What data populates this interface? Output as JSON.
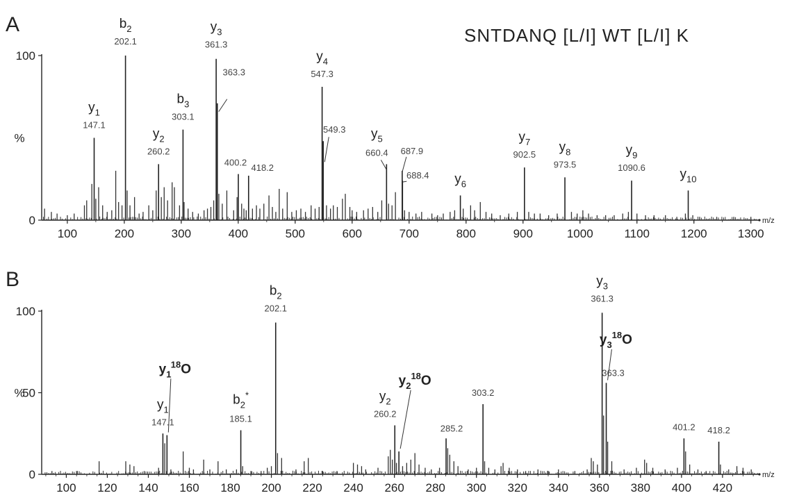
{
  "sequence": "SNTDANQ [L/I] WT [L/I] K",
  "chart_data": [
    {
      "type": "bar",
      "panel": "A",
      "xlabel": "m/z",
      "ylabel": "%",
      "xlim": [
        55,
        1315
      ],
      "ylim": [
        0,
        100
      ],
      "xticks": [
        100,
        200,
        300,
        400,
        500,
        600,
        700,
        800,
        900,
        1000,
        1100,
        1200,
        1300
      ],
      "yticks": [
        0,
        100
      ],
      "labeled_peaks": [
        {
          "x": 147.1,
          "y": 50,
          "mz_label": "147.1",
          "ion": "y",
          "sub": "1",
          "sup": ""
        },
        {
          "x": 202.1,
          "y": 100,
          "mz_label": "202.1",
          "ion": "b",
          "sub": "2",
          "sup": ""
        },
        {
          "x": 260.2,
          "y": 34,
          "mz_label": "260.2",
          "ion": "y",
          "sub": "2",
          "sup": ""
        },
        {
          "x": 303.1,
          "y": 55,
          "mz_label": "303.1",
          "ion": "b",
          "sub": "3",
          "sup": ""
        },
        {
          "x": 361.3,
          "y": 98,
          "mz_label": "361.3",
          "ion": "y",
          "sub": "3",
          "sup": ""
        },
        {
          "x": 363.3,
          "y": 71,
          "mz_label": "363.3",
          "ion": "",
          "sub": "",
          "sup": ""
        },
        {
          "x": 400.2,
          "y": 28,
          "mz_label": "400.2",
          "ion": "",
          "sub": "",
          "sup": ""
        },
        {
          "x": 418.2,
          "y": 27,
          "mz_label": "418.2",
          "ion": "",
          "sub": "",
          "sup": ""
        },
        {
          "x": 547.3,
          "y": 81,
          "mz_label": "547.3",
          "ion": "y",
          "sub": "4",
          "sup": ""
        },
        {
          "x": 549.3,
          "y": 48,
          "mz_label": "549.3",
          "ion": "",
          "sub": "",
          "sup": ""
        },
        {
          "x": 660.4,
          "y": 34,
          "mz_label": "660.4",
          "ion": "y",
          "sub": "5",
          "sup": ""
        },
        {
          "x": 687.9,
          "y": 30,
          "mz_label": "687.9",
          "ion": "",
          "sub": "",
          "sup": ""
        },
        {
          "x": 688.4,
          "y": 24,
          "mz_label": "688.4",
          "ion": "",
          "sub": "",
          "sup": ""
        },
        {
          "x": 790.0,
          "y": 15,
          "mz_label": "",
          "ion": "y",
          "sub": "6",
          "sup": ""
        },
        {
          "x": 902.5,
          "y": 32,
          "mz_label": "902.5",
          "ion": "y",
          "sub": "7",
          "sup": ""
        },
        {
          "x": 973.5,
          "y": 26,
          "mz_label": "973.5",
          "ion": "y",
          "sub": "8",
          "sup": ""
        },
        {
          "x": 1090.6,
          "y": 24,
          "mz_label": "1090.6",
          "ion": "y",
          "sub": "9",
          "sup": ""
        },
        {
          "x": 1190.0,
          "y": 18,
          "mz_label": "",
          "ion": "y",
          "sub": "10",
          "sup": ""
        }
      ],
      "minor_peaks": [
        [
          60,
          7
        ],
        [
          72,
          5
        ],
        [
          82,
          4
        ],
        [
          100,
          3
        ],
        [
          112,
          4
        ],
        [
          130,
          9
        ],
        [
          134,
          12
        ],
        [
          143,
          22
        ],
        [
          150,
          13
        ],
        [
          155,
          20
        ],
        [
          162,
          9
        ],
        [
          170,
          5
        ],
        [
          178,
          6
        ],
        [
          185,
          30
        ],
        [
          190,
          11
        ],
        [
          196,
          9
        ],
        [
          205,
          18
        ],
        [
          210,
          9
        ],
        [
          218,
          14
        ],
        [
          226,
          4
        ],
        [
          233,
          5
        ],
        [
          243,
          9
        ],
        [
          250,
          6
        ],
        [
          256,
          18
        ],
        [
          265,
          14
        ],
        [
          270,
          20
        ],
        [
          276,
          12
        ],
        [
          284,
          23
        ],
        [
          288,
          20
        ],
        [
          297,
          9
        ],
        [
          305,
          11
        ],
        [
          312,
          7
        ],
        [
          320,
          5
        ],
        [
          330,
          4
        ],
        [
          340,
          6
        ],
        [
          346,
          7
        ],
        [
          352,
          8
        ],
        [
          357,
          12
        ],
        [
          366,
          16
        ],
        [
          372,
          10
        ],
        [
          380,
          18
        ],
        [
          392,
          6
        ],
        [
          398,
          14
        ],
        [
          406,
          10
        ],
        [
          410,
          7
        ],
        [
          414,
          6
        ],
        [
          425,
          7
        ],
        [
          432,
          9
        ],
        [
          438,
          7
        ],
        [
          445,
          10
        ],
        [
          454,
          15
        ],
        [
          460,
          8
        ],
        [
          466,
          5
        ],
        [
          472,
          19
        ],
        [
          478,
          7
        ],
        [
          486,
          17
        ],
        [
          494,
          5
        ],
        [
          502,
          6
        ],
        [
          510,
          7
        ],
        [
          518,
          5
        ],
        [
          528,
          9
        ],
        [
          535,
          7
        ],
        [
          542,
          8
        ],
        [
          555,
          9
        ],
        [
          562,
          7
        ],
        [
          567,
          9
        ],
        [
          574,
          8
        ],
        [
          583,
          13
        ],
        [
          588,
          16
        ],
        [
          596,
          8
        ],
        [
          600,
          6
        ],
        [
          608,
          5
        ],
        [
          620,
          6
        ],
        [
          628,
          7
        ],
        [
          636,
          8
        ],
        [
          645,
          5
        ],
        [
          652,
          12
        ],
        [
          664,
          10
        ],
        [
          670,
          9
        ],
        [
          676,
          17
        ],
        [
          692,
          6
        ],
        [
          700,
          5
        ],
        [
          712,
          4
        ],
        [
          722,
          5
        ],
        [
          740,
          4
        ],
        [
          750,
          3
        ],
        [
          760,
          4
        ],
        [
          772,
          5
        ],
        [
          780,
          6
        ],
        [
          795,
          7
        ],
        [
          808,
          9
        ],
        [
          815,
          6
        ],
        [
          825,
          11
        ],
        [
          835,
          5
        ],
        [
          845,
          4
        ],
        [
          860,
          3
        ],
        [
          875,
          4
        ],
        [
          890,
          5
        ],
        [
          910,
          5
        ],
        [
          920,
          4
        ],
        [
          930,
          4
        ],
        [
          945,
          3
        ],
        [
          960,
          4
        ],
        [
          985,
          5
        ],
        [
          995,
          4
        ],
        [
          1005,
          6
        ],
        [
          1015,
          4
        ],
        [
          1030,
          3
        ],
        [
          1045,
          3
        ],
        [
          1060,
          3
        ],
        [
          1075,
          4
        ],
        [
          1085,
          5
        ],
        [
          1100,
          4
        ],
        [
          1115,
          3
        ],
        [
          1130,
          3
        ],
        [
          1150,
          3
        ],
        [
          1170,
          2
        ],
        [
          1185,
          4
        ],
        [
          1198,
          3
        ],
        [
          1210,
          2
        ],
        [
          1240,
          2
        ],
        [
          1270,
          2
        ],
        [
          1300,
          2
        ]
      ]
    },
    {
      "type": "bar",
      "panel": "B",
      "xlabel": "m/z",
      "ylabel": "%",
      "xlim": [
        88,
        438
      ],
      "ylim": [
        0,
        100
      ],
      "xticks": [
        100,
        120,
        140,
        160,
        180,
        200,
        220,
        240,
        260,
        280,
        300,
        320,
        340,
        360,
        380,
        400,
        420
      ],
      "yticks": [
        0,
        50,
        100
      ],
      "labeled_peaks": [
        {
          "x": 147.1,
          "y": 25,
          "mz_label": "147.1",
          "ion": "y",
          "sub": "1",
          "sup": ""
        },
        {
          "x": 149.1,
          "y": 24,
          "mz_label": "",
          "ion": "",
          "sub": "",
          "sup": "",
          "pointer": "y1-18o"
        },
        {
          "x": 185.1,
          "y": 27,
          "mz_label": "185.1",
          "ion": "b",
          "sub": "2",
          "sup": "*"
        },
        {
          "x": 202.1,
          "y": 93,
          "mz_label": "202.1",
          "ion": "b",
          "sub": "2",
          "sup": ""
        },
        {
          "x": 260.2,
          "y": 30,
          "mz_label": "260.2",
          "ion": "y",
          "sub": "2",
          "sup": ""
        },
        {
          "x": 262.2,
          "y": 14,
          "mz_label": "",
          "ion": "",
          "sub": "",
          "sup": "",
          "pointer": "y2-18o"
        },
        {
          "x": 285.2,
          "y": 22,
          "mz_label": "285.2",
          "ion": "",
          "sub": "",
          "sup": ""
        },
        {
          "x": 303.2,
          "y": 43,
          "mz_label": "303.2",
          "ion": "",
          "sub": "",
          "sup": ""
        },
        {
          "x": 361.3,
          "y": 99,
          "mz_label": "361.3",
          "ion": "y",
          "sub": "3",
          "sup": ""
        },
        {
          "x": 363.3,
          "y": 56,
          "mz_label": "363.3",
          "ion": "",
          "sub": "",
          "sup": ""
        },
        {
          "x": 401.2,
          "y": 22,
          "mz_label": "401.2",
          "ion": "",
          "sub": "",
          "sup": ""
        },
        {
          "x": 418.2,
          "y": 20,
          "mz_label": "418.2",
          "ion": "",
          "sub": "",
          "sup": ""
        }
      ],
      "floating_ions": [
        {
          "id": "y1-18o",
          "ion": "y",
          "sub": "1",
          "sup": "18",
          "tail": "O",
          "x": 153,
          "y": 62,
          "target": 149.1
        },
        {
          "id": "y2-18o",
          "ion": "y",
          "sub": "2",
          "sup": "18",
          "tail": "O",
          "x": 270,
          "y": 55,
          "target": 262.2
        },
        {
          "id": "y3-18o",
          "ion": "y",
          "sub": "3",
          "sup": "18",
          "tail": "O",
          "x": 368,
          "y": 80,
          "target": 363.3
        }
      ],
      "minor_peaks": [
        [
          93,
          2
        ],
        [
          105,
          2
        ],
        [
          116,
          8
        ],
        [
          129,
          8
        ],
        [
          131,
          6
        ],
        [
          133,
          5
        ],
        [
          138,
          2
        ],
        [
          145,
          4
        ],
        [
          148,
          19
        ],
        [
          151,
          3
        ],
        [
          157,
          14
        ],
        [
          160,
          4
        ],
        [
          162,
          3
        ],
        [
          167,
          9
        ],
        [
          170,
          3
        ],
        [
          174,
          8
        ],
        [
          178,
          3
        ],
        [
          183,
          3
        ],
        [
          186,
          5
        ],
        [
          190,
          2
        ],
        [
          195,
          2
        ],
        [
          198,
          4
        ],
        [
          200,
          5
        ],
        [
          203,
          13
        ],
        [
          205,
          10
        ],
        [
          212,
          3
        ],
        [
          216,
          8
        ],
        [
          218,
          10
        ],
        [
          225,
          2
        ],
        [
          232,
          2
        ],
        [
          240,
          7
        ],
        [
          242,
          6
        ],
        [
          244,
          5
        ],
        [
          246,
          3
        ],
        [
          252,
          4
        ],
        [
          257,
          11
        ],
        [
          258,
          15
        ],
        [
          259,
          9
        ],
        [
          261,
          7
        ],
        [
          264,
          5
        ],
        [
          266,
          7
        ],
        [
          268,
          9
        ],
        [
          270,
          13
        ],
        [
          272,
          6
        ],
        [
          275,
          4
        ],
        [
          278,
          3
        ],
        [
          282,
          4
        ],
        [
          286,
          16
        ],
        [
          287,
          12
        ],
        [
          289,
          8
        ],
        [
          291,
          5
        ],
        [
          296,
          3
        ],
        [
          300,
          4
        ],
        [
          304,
          8
        ],
        [
          306,
          4
        ],
        [
          309,
          3
        ],
        [
          312,
          5
        ],
        [
          313,
          7
        ],
        [
          316,
          4
        ],
        [
          320,
          3
        ],
        [
          324,
          2
        ],
        [
          330,
          3
        ],
        [
          335,
          2
        ],
        [
          340,
          3
        ],
        [
          348,
          2
        ],
        [
          354,
          3
        ],
        [
          356,
          10
        ],
        [
          357,
          8
        ],
        [
          359,
          6
        ],
        [
          362,
          36
        ],
        [
          364,
          20
        ],
        [
          366,
          8
        ],
        [
          372,
          3
        ],
        [
          378,
          4
        ],
        [
          382,
          9
        ],
        [
          383,
          7
        ],
        [
          386,
          4
        ],
        [
          392,
          3
        ],
        [
          398,
          4
        ],
        [
          402,
          14
        ],
        [
          404,
          6
        ],
        [
          408,
          3
        ],
        [
          412,
          2
        ],
        [
          419,
          6
        ],
        [
          423,
          3
        ],
        [
          427,
          5
        ],
        [
          430,
          4
        ],
        [
          434,
          3
        ]
      ]
    }
  ]
}
